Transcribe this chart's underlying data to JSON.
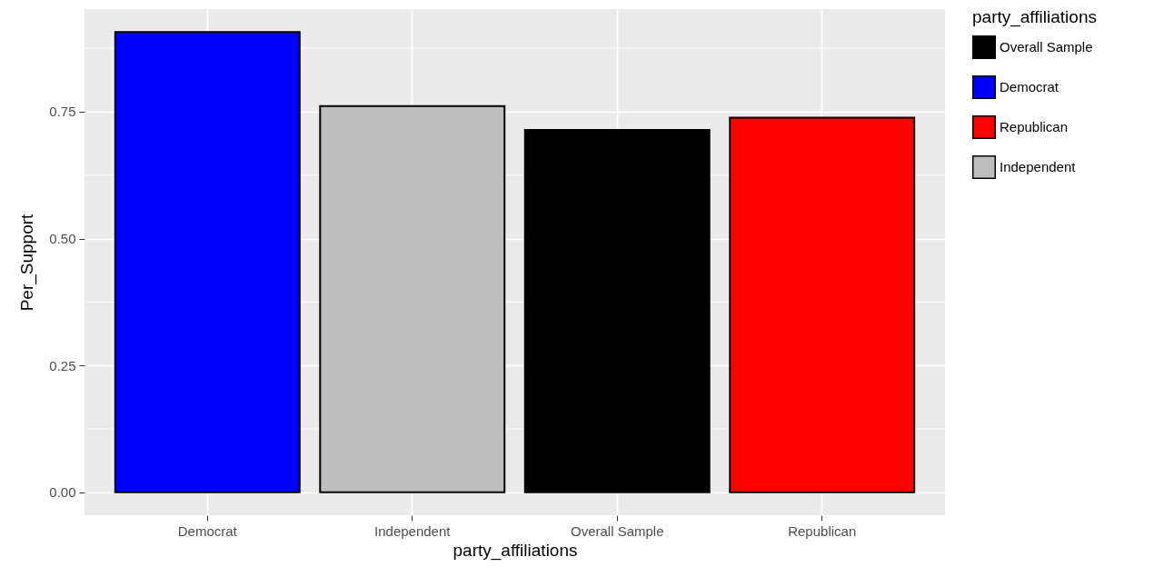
{
  "chart_data": {
    "type": "bar",
    "xlabel": "party_affiliations",
    "ylabel": "Per_Support",
    "legend_title": "party_affiliations",
    "categories": [
      "Democrat",
      "Independent",
      "Overall Sample",
      "Republican"
    ],
    "series": [
      {
        "name": "Overall Sample",
        "color": "#000000",
        "values": [
          null,
          null,
          0.714,
          null
        ]
      },
      {
        "name": "Democrat",
        "color": "#0000ff",
        "values": [
          0.907,
          null,
          null,
          null
        ]
      },
      {
        "name": "Republican",
        "color": "#ff0000",
        "values": [
          null,
          null,
          null,
          0.738
        ]
      },
      {
        "name": "Independent",
        "color": "#bebebe",
        "values": [
          null,
          0.761,
          null,
          null
        ]
      }
    ],
    "ylim": [
      -0.045,
      0.952
    ],
    "yticks": [
      {
        "value": 0,
        "label": "0.00"
      },
      {
        "value": 0.25,
        "label": "0.25"
      },
      {
        "value": 0.5,
        "label": "0.50"
      },
      {
        "value": 0.75,
        "label": "0.75"
      }
    ],
    "grid": true,
    "legend": "right"
  }
}
